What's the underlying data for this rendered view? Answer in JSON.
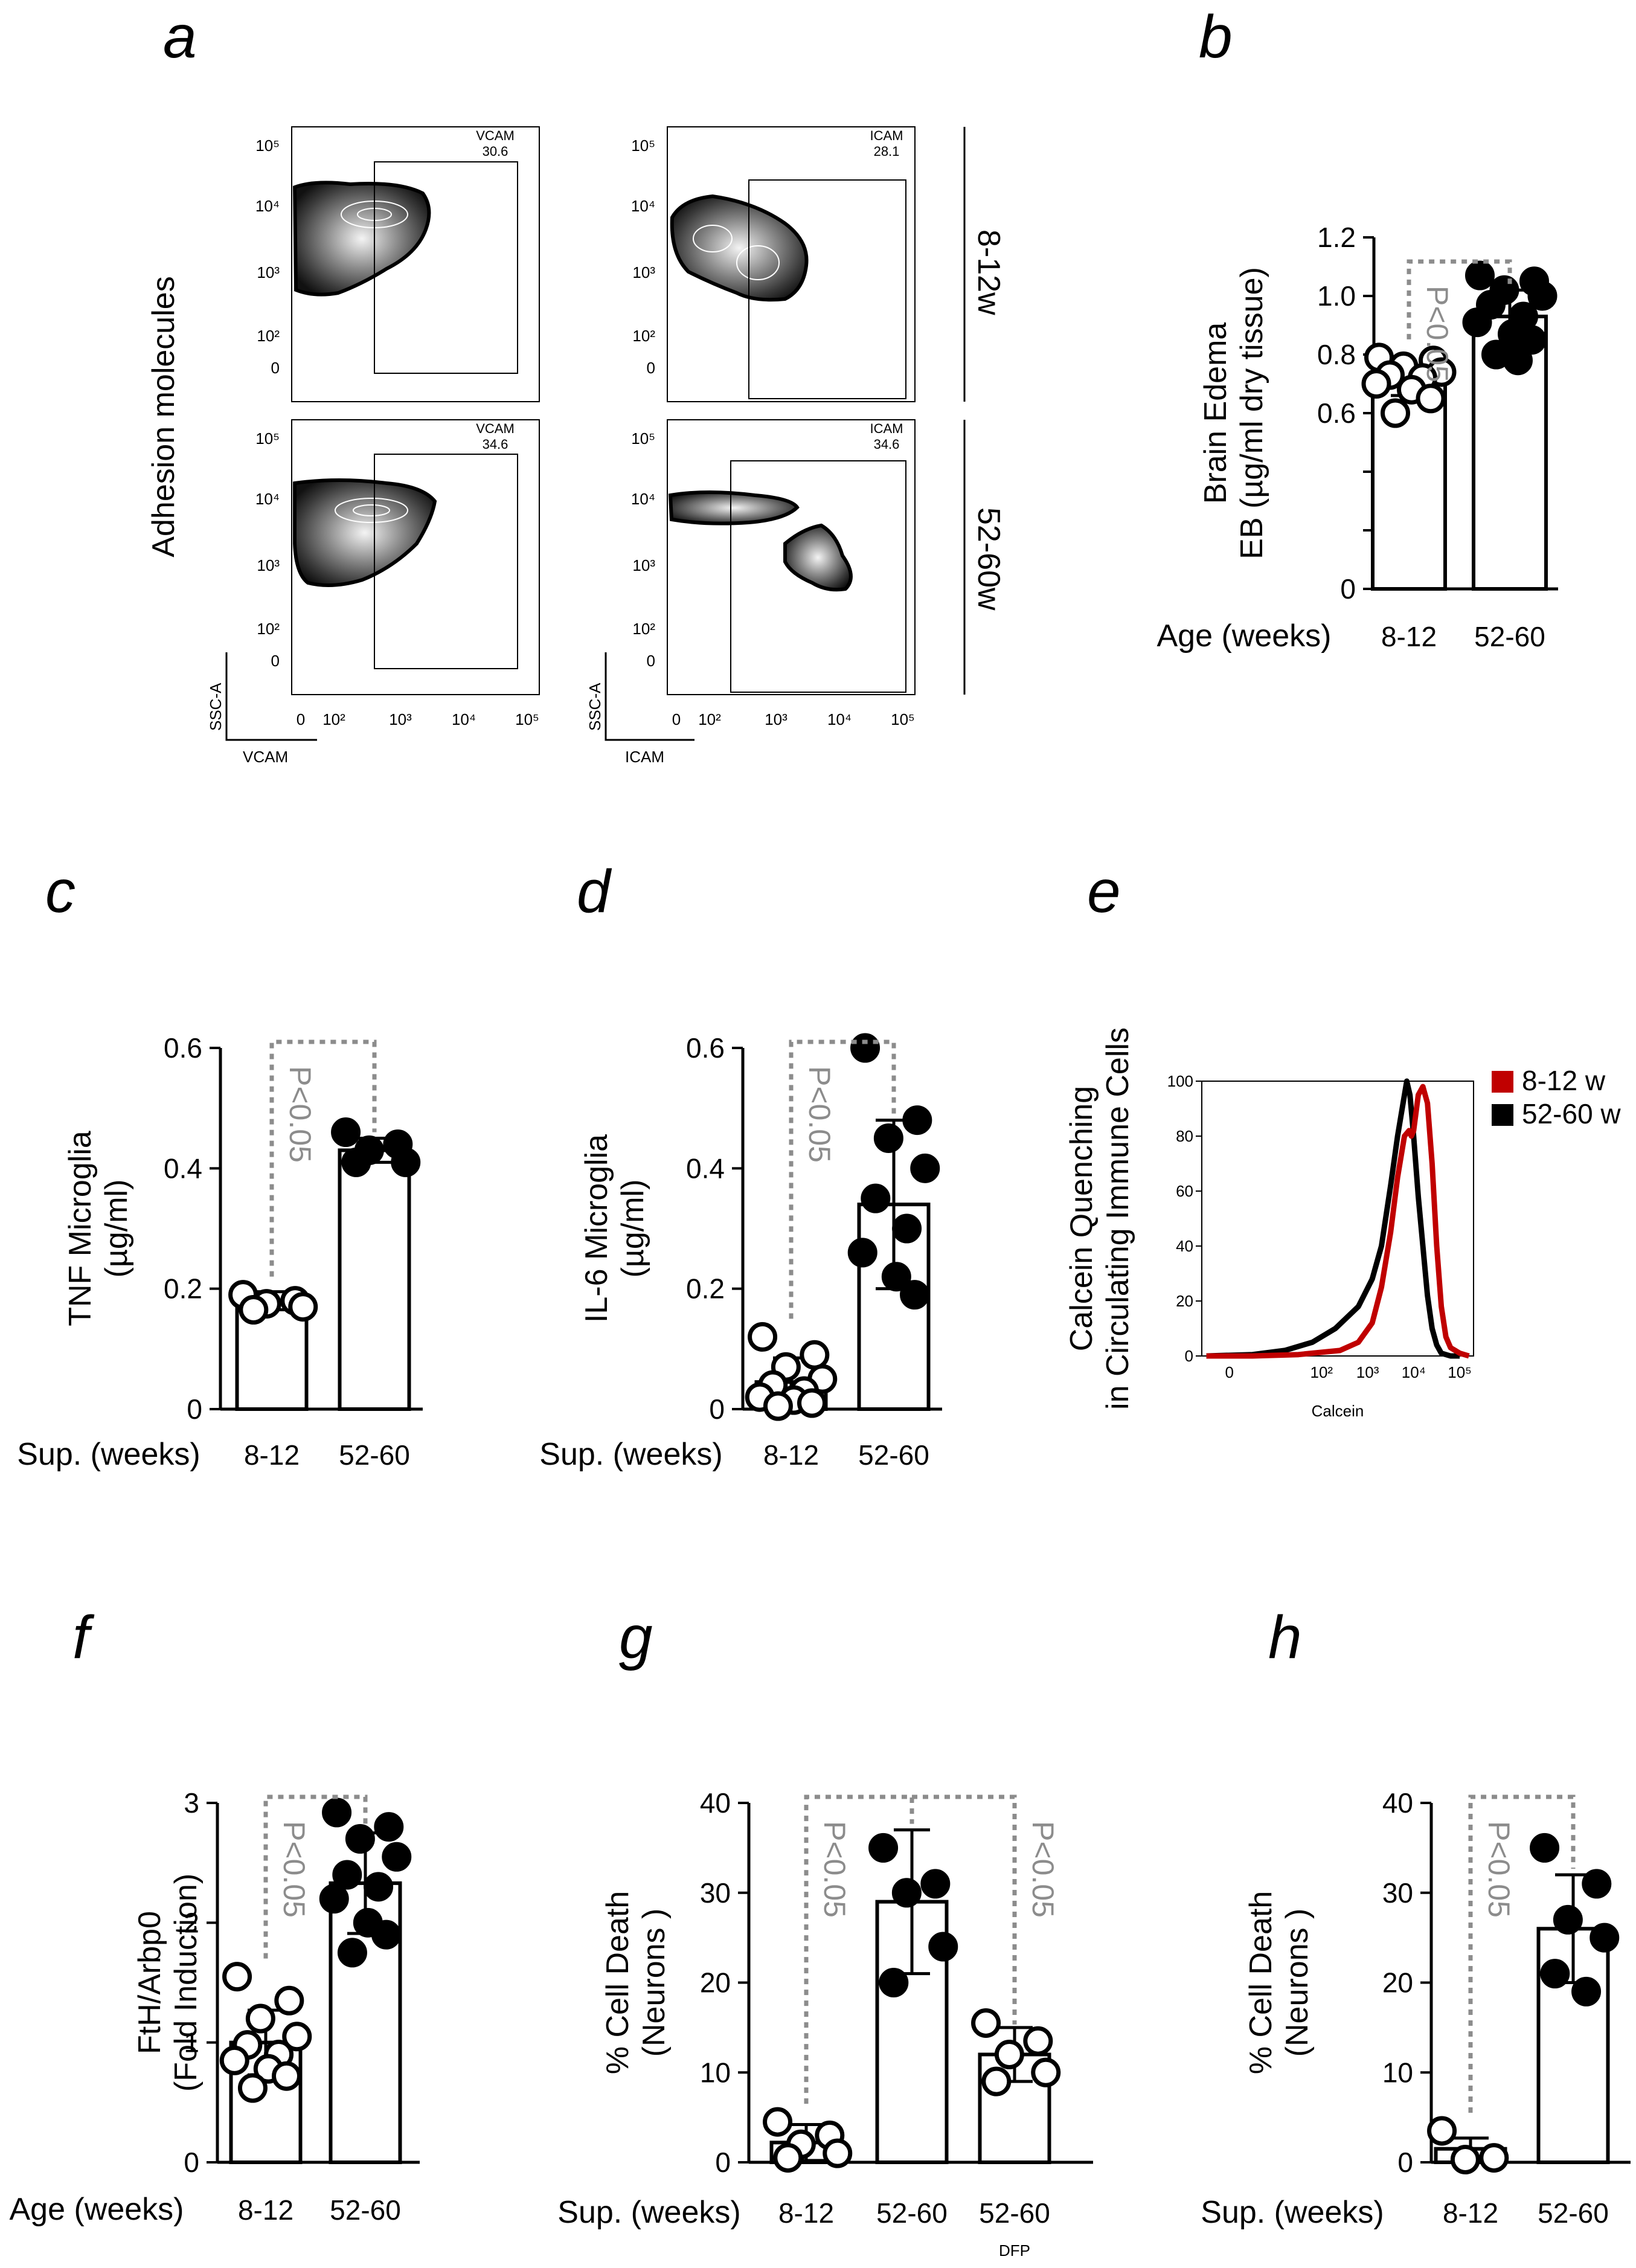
{
  "panel_labels": {
    "a": "a",
    "b": "b",
    "c": "c",
    "d": "d",
    "e": "e",
    "f": "f",
    "g": "g",
    "h": "h"
  },
  "colors": {
    "p_line": "#8c8c8c",
    "young": "#c00000",
    "old": "#000000"
  },
  "panel_a": {
    "ylabel": "Adhesion molecules",
    "rows": [
      "8-12w",
      "52-60w"
    ],
    "yticks": [
      "10⁵",
      "10⁴",
      "10³",
      "10²",
      "0"
    ],
    "xticks": [
      "0",
      "10²",
      "10³",
      "10⁴",
      "10⁵"
    ],
    "y_axis_name": "SSC-A",
    "plots": [
      {
        "marker": "VCAM",
        "row": "8-12w",
        "gate_value": "30.6"
      },
      {
        "marker": "ICAM",
        "row": "8-12w",
        "gate_value": "28.1"
      },
      {
        "marker": "VCAM",
        "row": "52-60w",
        "gate_value": "34.6"
      },
      {
        "marker": "ICAM",
        "row": "52-60w",
        "gate_value": "34.6"
      }
    ],
    "x_axis_names": [
      "VCAM",
      "ICAM"
    ]
  },
  "chart_data": [
    {
      "id": "b",
      "type": "bar",
      "title": "",
      "ylabel_lines": [
        "Brain Edema",
        "EB (µg/ml dry tissue)"
      ],
      "x_title": "Age (weeks)",
      "categories": [
        "8-12",
        "52-60"
      ],
      "values": [
        0.71,
        0.93
      ],
      "sd": [
        0.05,
        0.09
      ],
      "ylim": [
        0,
        1.2
      ],
      "yticks": [
        0,
        0.2,
        0.4,
        0.6,
        0.8,
        1.0,
        1.2
      ],
      "ytick_labels": [
        "0",
        "",
        "",
        "0.6",
        "0.8",
        "1.0",
        "1.2"
      ],
      "points": [
        [
          0.79,
          0.78,
          0.76,
          0.74,
          0.73,
          0.72,
          0.7,
          0.68,
          0.65,
          0.6
        ],
        [
          1.07,
          1.05,
          1.02,
          1.0,
          0.97,
          0.93,
          0.91,
          0.87,
          0.85,
          0.8,
          0.78
        ]
      ],
      "fills": [
        "open",
        "filled"
      ],
      "comparisons": [
        {
          "from": 0,
          "to": 1,
          "label": "P<0.05"
        }
      ]
    },
    {
      "id": "c",
      "type": "bar",
      "ylabel_lines": [
        "TNF Microglia",
        "(µg/ml)"
      ],
      "x_title": "Sup. (weeks)",
      "categories": [
        "8-12",
        "52-60"
      ],
      "values": [
        0.18,
        0.43
      ],
      "sd": [
        0.015,
        0.02
      ],
      "ylim": [
        0,
        0.6
      ],
      "yticks": [
        0,
        0.2,
        0.4,
        0.6
      ],
      "ytick_labels": [
        "0",
        "0.2",
        "0.4",
        "0.6"
      ],
      "points": [
        [
          0.19,
          0.18,
          0.175,
          0.17,
          0.165
        ],
        [
          0.46,
          0.44,
          0.43,
          0.41,
          0.41
        ]
      ],
      "fills": [
        "open",
        "filled"
      ],
      "comparisons": [
        {
          "from": 0,
          "to": 1,
          "label": "P<0.05"
        }
      ]
    },
    {
      "id": "d",
      "type": "bar",
      "ylabel_lines": [
        "IL-6 Microglia",
        "(µg/ml)"
      ],
      "x_title": "Sup. (weeks)",
      "categories": [
        "8-12",
        "52-60"
      ],
      "values": [
        0.045,
        0.34
      ],
      "sd": [
        0.04,
        0.14
      ],
      "ylim": [
        0,
        0.6
      ],
      "yticks": [
        0,
        0.2,
        0.4,
        0.6
      ],
      "ytick_labels": [
        "0",
        "0.2",
        "0.4",
        "0.6"
      ],
      "points": [
        [
          0.12,
          0.09,
          0.07,
          0.05,
          0.04,
          0.03,
          0.02,
          0.015,
          0.01,
          0.005
        ],
        [
          0.6,
          0.48,
          0.45,
          0.4,
          0.35,
          0.3,
          0.26,
          0.22,
          0.19
        ]
      ],
      "fills": [
        "open",
        "filled"
      ],
      "comparisons": [
        {
          "from": 0,
          "to": 1,
          "label": "P<0.05"
        }
      ]
    },
    {
      "id": "e",
      "type": "line",
      "ylabel_lines": [
        "Calcein Quenching",
        "in Circulating Immune Cells"
      ],
      "xlabel": "Calcein",
      "yticks": [
        0,
        20,
        40,
        60,
        80,
        100
      ],
      "xtick_labels": [
        "0",
        "10²",
        "10³",
        "10⁴",
        "10⁵"
      ],
      "series": [
        {
          "name": "8-12 w",
          "color": "#c00000",
          "x": [
            -0.5,
            0.5,
            1.5,
            2.4,
            2.8,
            3.1,
            3.3,
            3.5,
            3.65,
            3.8,
            3.9,
            3.95,
            4.0,
            4.1,
            4.2,
            4.3,
            4.4,
            4.5,
            4.6,
            4.7,
            4.8,
            5.0,
            5.2
          ],
          "y": [
            0,
            0,
            0.5,
            2,
            5,
            12,
            25,
            45,
            65,
            80,
            82,
            80,
            82,
            95,
            98,
            92,
            70,
            40,
            18,
            7,
            3,
            1,
            0
          ]
        },
        {
          "name": "52-60 w",
          "color": "#000000",
          "x": [
            -0.5,
            0.5,
            1.2,
            1.8,
            2.3,
            2.8,
            3.1,
            3.3,
            3.5,
            3.65,
            3.75,
            3.85,
            3.92,
            4.0,
            4.1,
            4.2,
            4.3,
            4.4,
            4.5,
            4.6,
            4.8,
            5.0
          ],
          "y": [
            0,
            0.5,
            2,
            5,
            10,
            18,
            28,
            40,
            62,
            80,
            90,
            100,
            95,
            80,
            58,
            40,
            22,
            10,
            4,
            1,
            0,
            0
          ]
        }
      ]
    },
    {
      "id": "f",
      "type": "bar",
      "ylabel_lines": [
        "FtH/Arbp0",
        "(Fold Induction)"
      ],
      "x_title": "Age (weeks)",
      "categories": [
        "8-12",
        "52-60"
      ],
      "values": [
        1.0,
        2.33
      ],
      "sd": [
        0.27,
        0.42
      ],
      "ylim": [
        0,
        3
      ],
      "yticks": [
        0,
        1,
        2,
        3
      ],
      "ytick_labels": [
        "0",
        "1",
        "2",
        "3"
      ],
      "points": [
        [
          1.55,
          1.35,
          1.2,
          1.05,
          0.98,
          0.9,
          0.85,
          0.78,
          0.72,
          0.62
        ],
        [
          2.92,
          2.8,
          2.7,
          2.55,
          2.4,
          2.3,
          2.2,
          2.0,
          1.9,
          1.75
        ]
      ],
      "fills": [
        "open",
        "filled"
      ],
      "comparisons": [
        {
          "from": 0,
          "to": 1,
          "label": "P<0.05"
        }
      ]
    },
    {
      "id": "g",
      "type": "bar",
      "ylabel_lines": [
        "% Cell Death",
        "(Neurons )"
      ],
      "x_title": "Sup. (weeks)",
      "categories": [
        "8-12",
        "52-60",
        "52-60"
      ],
      "category_sublabels": [
        "",
        "",
        "DFP"
      ],
      "values": [
        2.2,
        29,
        12
      ],
      "sd": [
        2.0,
        8.0,
        3.0
      ],
      "ylim": [
        0,
        40
      ],
      "yticks": [
        0,
        10,
        20,
        30,
        40
      ],
      "ytick_labels": [
        "0",
        "10",
        "20",
        "30",
        "40"
      ],
      "points": [
        [
          4.5,
          3,
          2,
          1,
          0.5
        ],
        [
          35,
          31,
          30,
          24,
          20
        ],
        [
          15.5,
          13.5,
          12,
          10,
          9
        ]
      ],
      "fills": [
        "open",
        "filled",
        "open"
      ],
      "comparisons": [
        {
          "from": 0,
          "to": 1,
          "label": "P<0.05"
        },
        {
          "from": 1,
          "to": 2,
          "label": "P<0.05"
        }
      ]
    },
    {
      "id": "h",
      "type": "bar",
      "ylabel_lines": [
        "% Cell Death",
        "(Neurons )"
      ],
      "x_title": "Sup. (weeks)",
      "categories": [
        "8-12",
        "52-60"
      ],
      "values": [
        1.5,
        26
      ],
      "sd": [
        1.2,
        6.0
      ],
      "ylim": [
        0,
        40
      ],
      "yticks": [
        0,
        10,
        20,
        30,
        40
      ],
      "ytick_labels": [
        "0",
        "10",
        "20",
        "30",
        "40"
      ],
      "points": [
        [
          3.5,
          0.5,
          0.3
        ],
        [
          35,
          31,
          27,
          25,
          21,
          19
        ]
      ],
      "fills": [
        "open",
        "filled"
      ],
      "comparisons": [
        {
          "from": 0,
          "to": 1,
          "label": "P<0.05"
        }
      ]
    }
  ]
}
